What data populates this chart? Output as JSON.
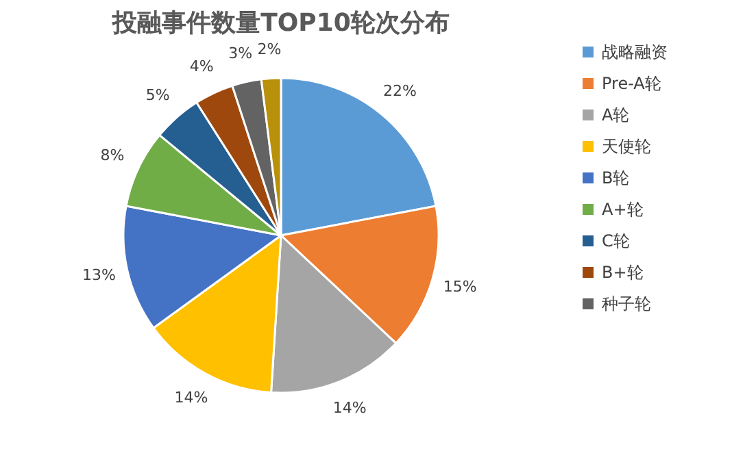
{
  "chart_data": {
    "type": "pie",
    "title": "投融事件数量TOP10轮次分布",
    "categories": [
      "战略融资",
      "Pre-A轮",
      "A轮",
      "天使轮",
      "B轮",
      "A+轮",
      "C轮",
      "B+轮",
      "种子轮",
      null
    ],
    "values": [
      22,
      15,
      14,
      14,
      13,
      8,
      5,
      4,
      3,
      2
    ],
    "value_labels": [
      "22%",
      "15%",
      "14%",
      "14%",
      "13%",
      "8%",
      "5%",
      "4%",
      "3%",
      "2%"
    ],
    "colors": [
      "#5b9bd5",
      "#ed7d31",
      "#a5a5a5",
      "#ffc000",
      "#4472c4",
      "#70ad47",
      "#255e91",
      "#9e480e",
      "#636363",
      "#b8900a"
    ],
    "legend": "right"
  }
}
